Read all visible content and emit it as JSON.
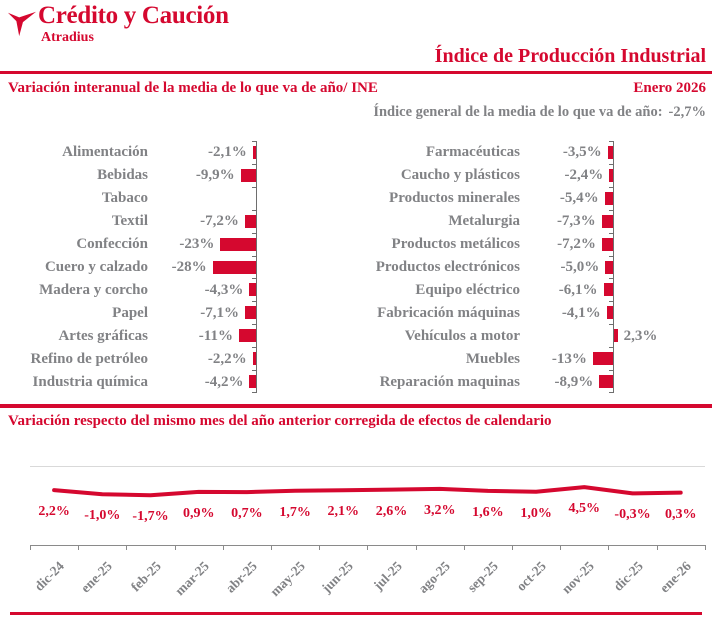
{
  "colors": {
    "accent": "#D5082F",
    "gray": "#818285",
    "gridline": "#D9D9D9",
    "axis": "#6E6E6E"
  },
  "header": {
    "logo_title": "Crédito y Caución",
    "logo_subtitle": "Atradius",
    "report_title": "Índice de Producción Industrial"
  },
  "section_ytd": {
    "title": "Variación interanual de la media de lo que va de año/ INE",
    "period": "Enero 2026",
    "general_index_label": "Índice general de la media de lo que va de año:",
    "general_index_value": "-2,7%"
  },
  "section_monthly": {
    "title": "Variación respecto del mismo mes del año anterior corregida de efectos de calendario"
  },
  "chart_data": [
    {
      "type": "bar",
      "orientation": "horizontal",
      "title": "Variación interanual de la media de lo que va de año/ INE (columna izquierda)",
      "subtitle": "Enero 2026",
      "unit": "%",
      "categories": [
        "Alimentación",
        "Bebidas",
        "Tabaco",
        "Textil",
        "Confección",
        "Cuero y calzado",
        "Madera y corcho",
        "Papel",
        "Artes gráficas",
        "Refino de petróleo",
        "Industria química"
      ],
      "values": [
        -2.1,
        -9.9,
        null,
        -7.2,
        -23,
        -28,
        -4.3,
        -7.1,
        -11,
        -2.2,
        -4.2
      ],
      "labels": [
        "-2,1%",
        "-9,9%",
        "",
        "-7,2%",
        "-23%",
        "-28%",
        "-4,3%",
        "-7,1%",
        "-11%",
        "-2,2%",
        "-4,2%"
      ]
    },
    {
      "type": "bar",
      "orientation": "horizontal",
      "title": "Variación interanual de la media de lo que va de año/ INE (columna derecha)",
      "subtitle": "Enero 2026",
      "unit": "%",
      "categories": [
        "Farmacéuticas",
        "Caucho y plásticos",
        "Productos minerales",
        "Metalurgia",
        "Productos metálicos",
        "Productos electrónicos",
        "Equipo eléctrico",
        "Fabricación máquinas",
        "Vehículos a motor",
        "Muebles",
        "Reparación maquinas"
      ],
      "values": [
        -3.5,
        -2.4,
        -5.4,
        -7.3,
        -7.2,
        -5.0,
        -6.1,
        -4.1,
        2.3,
        -13,
        -8.9
      ],
      "labels": [
        "-3,5%",
        "-2,4%",
        "-5,4%",
        "-7,3%",
        "-7,2%",
        "-5,0%",
        "-6,1%",
        "-4,1%",
        "2,3%",
        "-13%",
        "-8,9%"
      ]
    },
    {
      "type": "line",
      "title": "Variación respecto del mismo mes del año anterior corregida de efectos de calendario",
      "unit": "%",
      "grid": true,
      "x": [
        "dic-24",
        "ene-25",
        "feb-25",
        "mar-25",
        "abr-25",
        "may-25",
        "jun-25",
        "jul-25",
        "ago-25",
        "sep-25",
        "oct-25",
        "nov-25",
        "dic-25",
        "ene-26"
      ],
      "values": [
        2.2,
        -1.0,
        -1.7,
        0.9,
        0.7,
        1.7,
        2.1,
        2.6,
        3.2,
        1.6,
        1.0,
        4.5,
        -0.3,
        0.3
      ],
      "labels": [
        "2,2%",
        "-1,0%",
        "-1,7%",
        "0,9%",
        "0,7%",
        "1,7%",
        "2,1%",
        "2,6%",
        "3,2%",
        "1,6%",
        "1,0%",
        "4,5%",
        "-0,3%",
        "0,3%"
      ]
    }
  ]
}
